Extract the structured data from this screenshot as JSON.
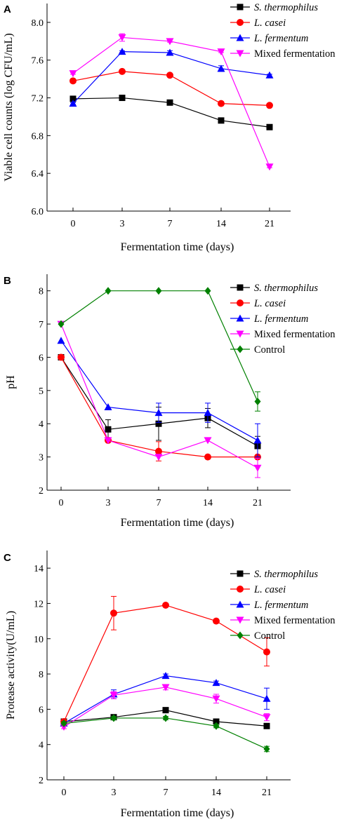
{
  "chart_data": [
    {
      "type": "line",
      "panel": "A",
      "x": [
        "0",
        "3",
        "7",
        "14",
        "21"
      ],
      "xlabel": "Fermentation time (days)",
      "ylabel": "Viable cell counts (log CFU/mL)",
      "ylim": [
        6.0,
        8.2
      ],
      "yticks": [
        "6.0",
        "6.4",
        "6.8",
        "7.2",
        "7.6",
        "8.0"
      ],
      "ytick_values": [
        6.0,
        6.4,
        6.8,
        7.2,
        7.6,
        8.0
      ],
      "legend_position": "top-right",
      "series": [
        {
          "name": "S. thermophilus",
          "italic": true,
          "color": "#000000",
          "marker": "square",
          "values": [
            7.19,
            7.2,
            7.15,
            6.96,
            6.89
          ],
          "errors": [
            0.02,
            0.01,
            0.01,
            0.01,
            0.01
          ]
        },
        {
          "name": "L. casei",
          "italic": true,
          "color": "#ff0000",
          "marker": "circle",
          "values": [
            7.38,
            7.48,
            7.44,
            7.14,
            7.12
          ],
          "errors": [
            0.01,
            0.01,
            0.01,
            0.01,
            0.01
          ]
        },
        {
          "name": "L. fermentum",
          "italic": true,
          "color": "#0000ff",
          "marker": "triangle-up",
          "values": [
            7.14,
            7.69,
            7.68,
            7.51,
            7.44
          ],
          "errors": [
            0.01,
            0.01,
            0.02,
            0.03,
            0.01
          ]
        },
        {
          "name": "Mixed fermentation",
          "italic": false,
          "color": "#ff00ff",
          "marker": "triangle-down",
          "values": [
            7.46,
            7.84,
            7.8,
            7.69,
            6.47
          ],
          "errors": [
            0.01,
            0.04,
            0.01,
            0.01,
            0.01
          ]
        }
      ]
    },
    {
      "type": "line",
      "panel": "B",
      "x": [
        "0",
        "3",
        "7",
        "14",
        "21"
      ],
      "xlabel": "Fermentation time (days)",
      "ylabel": "pH",
      "ylim": [
        2,
        8.5
      ],
      "yticks": [
        "2",
        "3",
        "4",
        "5",
        "6",
        "7",
        "8"
      ],
      "ytick_values": [
        2,
        3,
        4,
        5,
        6,
        7,
        8
      ],
      "legend_position": "top-right",
      "series": [
        {
          "name": "S. thermophilus",
          "italic": true,
          "color": "#000000",
          "marker": "square",
          "values": [
            6.0,
            3.83,
            4.0,
            4.17,
            3.33
          ],
          "errors": [
            0,
            0.29,
            0.5,
            0.29,
            0.29
          ]
        },
        {
          "name": "L. casei",
          "italic": true,
          "color": "#ff0000",
          "marker": "circle",
          "values": [
            6.0,
            3.5,
            3.17,
            3.0,
            3.0
          ],
          "errors": [
            0,
            0,
            0.29,
            0,
            0
          ]
        },
        {
          "name": "L. fermentum",
          "italic": true,
          "color": "#0000ff",
          "marker": "triangle-up",
          "values": [
            6.5,
            4.5,
            4.33,
            4.33,
            3.5
          ],
          "errors": [
            0,
            0,
            0.29,
            0.29,
            0.5
          ]
        },
        {
          "name": "Mixed fermentation",
          "italic": false,
          "color": "#ff00ff",
          "marker": "triangle-down",
          "values": [
            7.0,
            3.5,
            3.0,
            3.5,
            2.67
          ],
          "errors": [
            0,
            0,
            0,
            0,
            0.29
          ]
        },
        {
          "name": "Control",
          "italic": false,
          "color": "#008000",
          "marker": "diamond",
          "values": [
            7.0,
            8.0,
            8.0,
            8.0,
            4.67
          ],
          "errors": [
            0,
            0,
            0,
            0,
            0.29
          ]
        }
      ]
    },
    {
      "type": "line",
      "panel": "C",
      "x": [
        "0",
        "3",
        "7",
        "14",
        "21"
      ],
      "xlabel": "Fermentation time (days)",
      "ylabel": "Protease activity(U/mL)",
      "ylim": [
        2,
        15
      ],
      "yticks": [
        "2",
        "4",
        "6",
        "8",
        "10",
        "12",
        "14"
      ],
      "ytick_values": [
        2,
        4,
        6,
        8,
        10,
        12,
        14
      ],
      "legend_position": "top-right",
      "series": [
        {
          "name": "S. thermophilus",
          "italic": true,
          "color": "#000000",
          "marker": "square",
          "values": [
            5.3,
            5.55,
            5.95,
            5.3,
            5.05
          ],
          "errors": [
            0.1,
            0.1,
            0.1,
            0.1,
            0.1
          ]
        },
        {
          "name": "L. casei",
          "italic": true,
          "color": "#ff0000",
          "marker": "circle",
          "values": [
            5.3,
            11.45,
            11.9,
            11.0,
            9.25
          ],
          "errors": [
            0.1,
            0.95,
            0.1,
            0.1,
            0.8
          ]
        },
        {
          "name": "L. fermentum",
          "italic": true,
          "color": "#0000ff",
          "marker": "triangle-up",
          "values": [
            5.2,
            6.85,
            7.9,
            7.5,
            6.6
          ],
          "errors": [
            0.1,
            0.25,
            0.1,
            0.1,
            0.6
          ]
        },
        {
          "name": "Mixed fermentation",
          "italic": false,
          "color": "#ff00ff",
          "marker": "triangle-down",
          "values": [
            5.0,
            6.8,
            7.25,
            6.6,
            5.55
          ],
          "errors": [
            0.1,
            0.2,
            0.15,
            0.25,
            0.2
          ]
        },
        {
          "name": "Control",
          "italic": false,
          "color": "#008000",
          "marker": "diamond",
          "values": [
            5.2,
            5.5,
            5.5,
            5.05,
            3.75
          ],
          "errors": [
            0.1,
            0.1,
            0.1,
            0.1,
            0.15
          ]
        }
      ]
    }
  ]
}
